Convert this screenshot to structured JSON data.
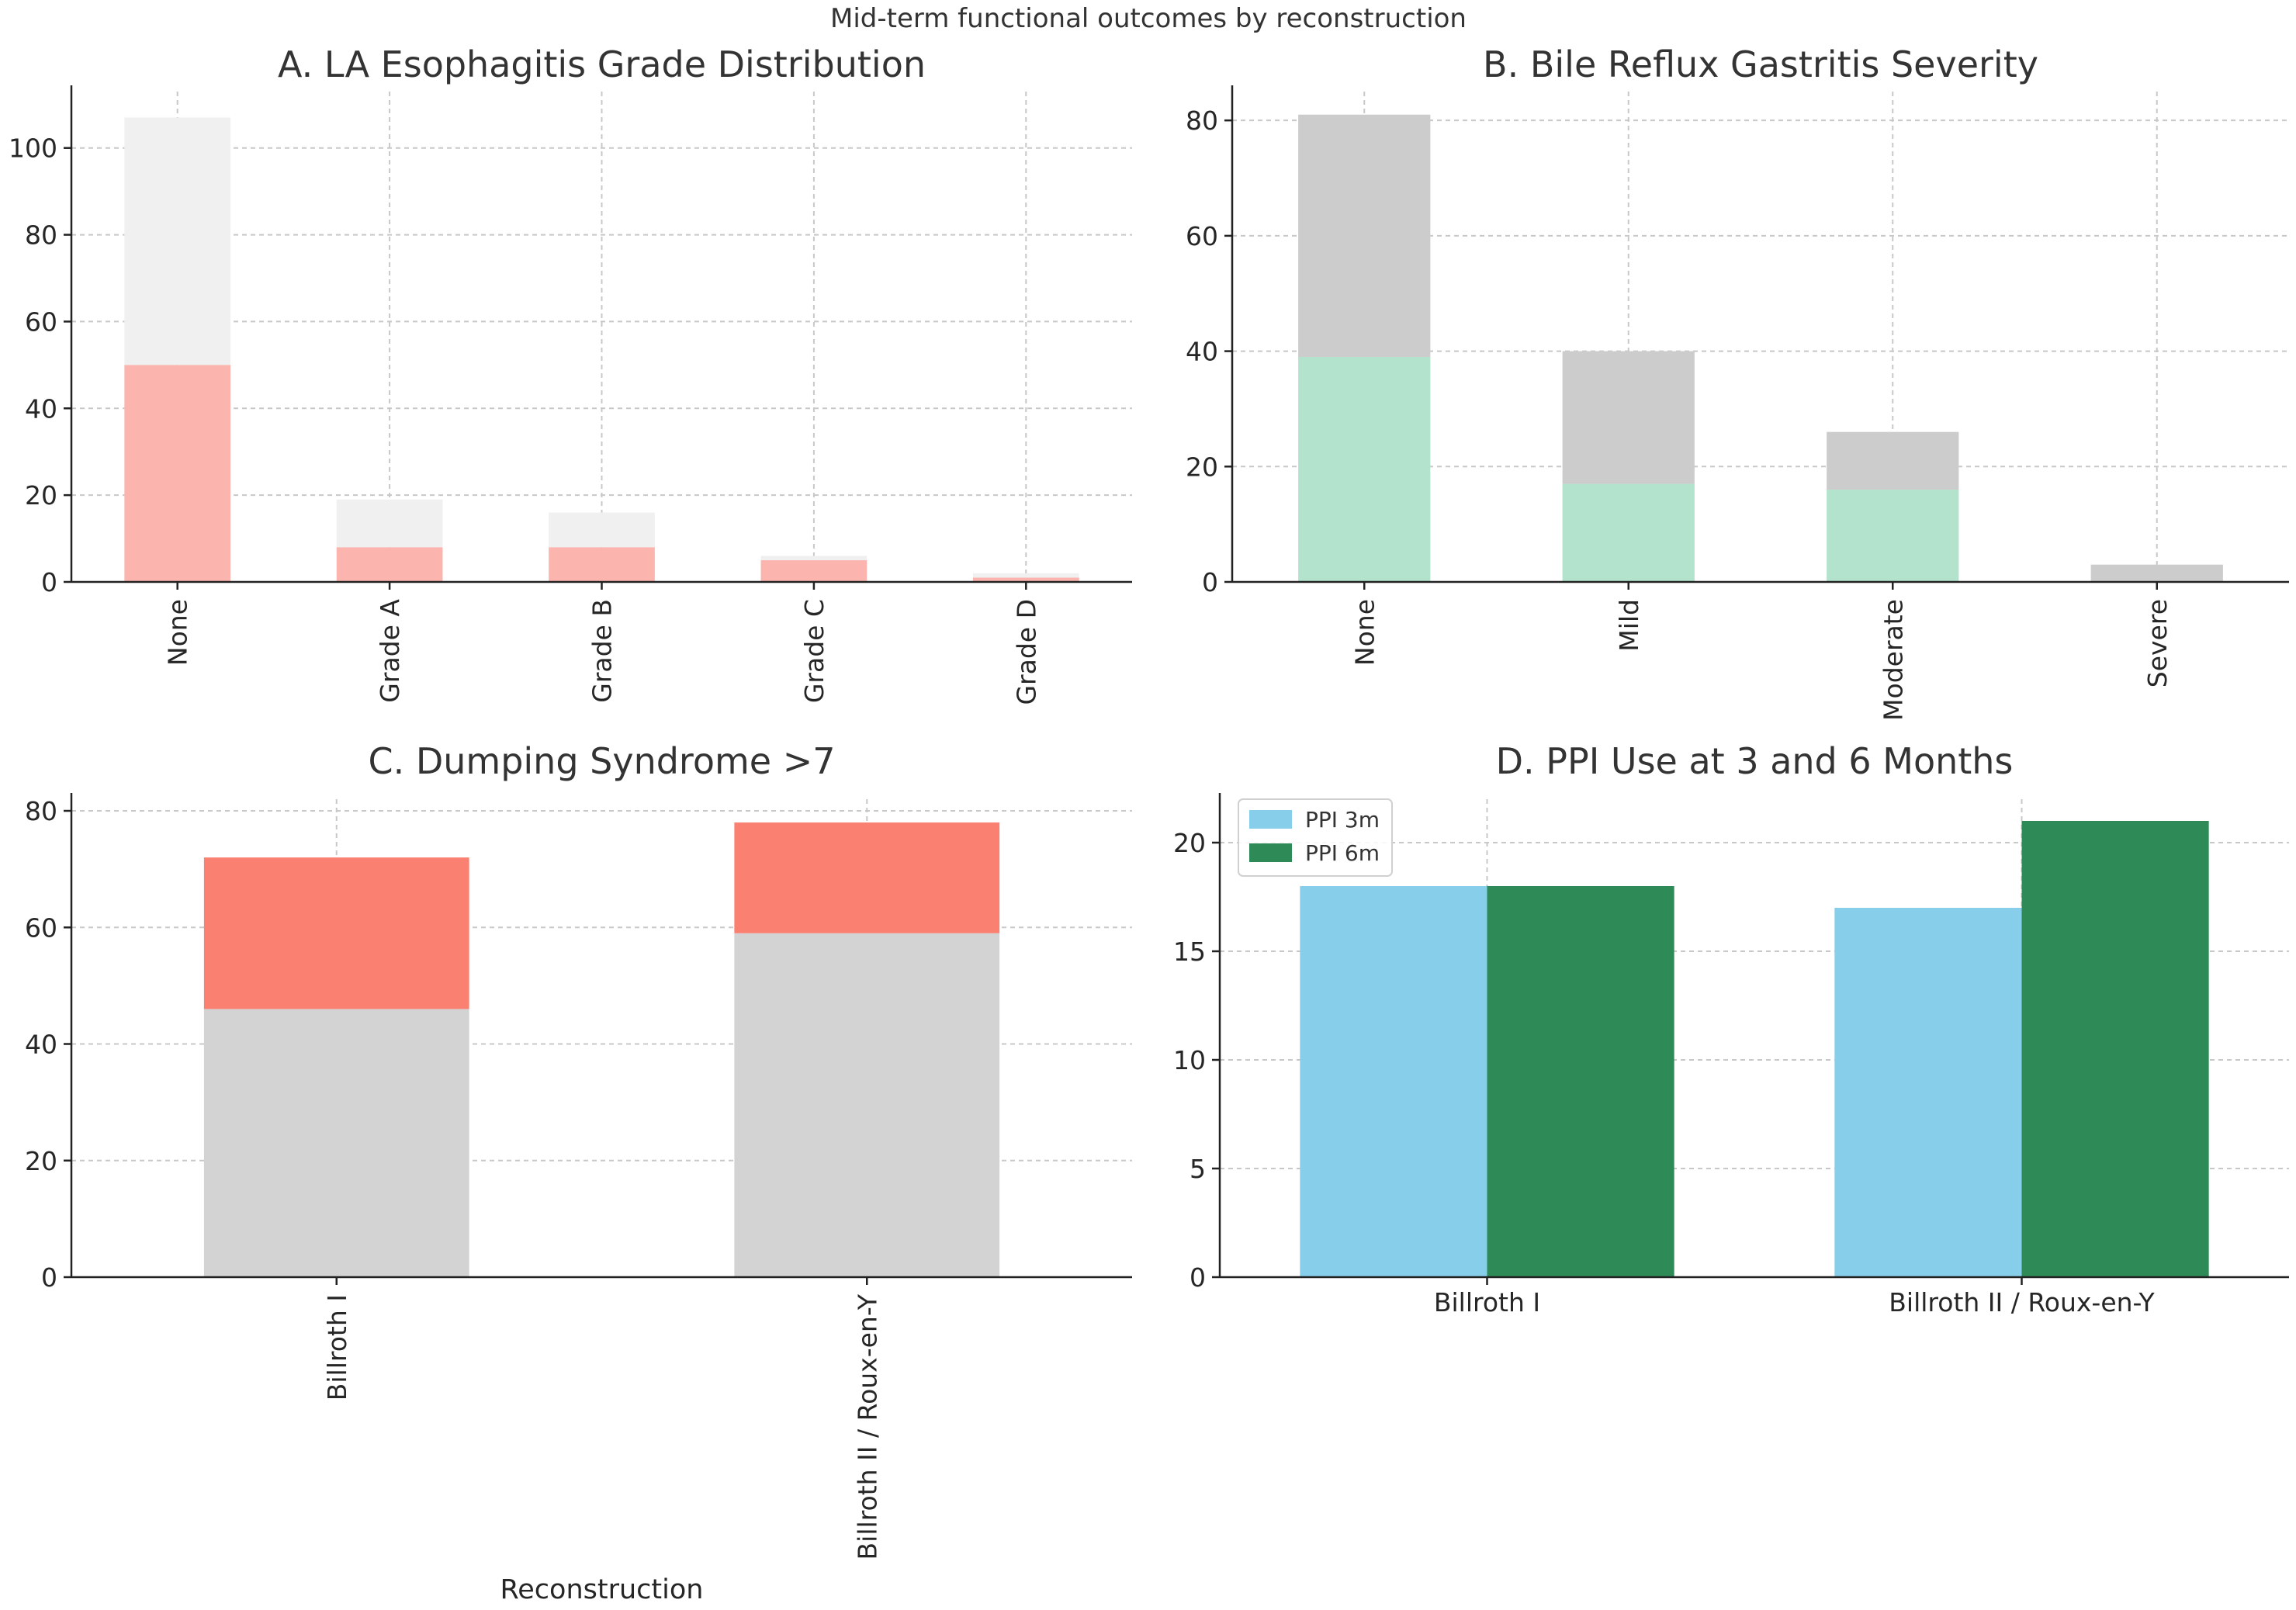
{
  "figure": {
    "suptitle": "Mid-term functional outcomes by reconstruction"
  },
  "chart_data": [
    {
      "type": "bar",
      "stacked": true,
      "title": "A. LA Esophagitis Grade Distribution",
      "xlabel": "",
      "ylabel": "",
      "categories": [
        "None",
        "Grade A",
        "Grade B",
        "Grade C",
        "Grade D"
      ],
      "category_label_rotation": "vertical",
      "ylim": [
        0,
        113
      ],
      "yticks": [
        0,
        20,
        40,
        60,
        80,
        100
      ],
      "grid": true,
      "series": [
        {
          "values": [
            50,
            8,
            8,
            5,
            1
          ],
          "color": "#fbb4ae"
        },
        {
          "values": [
            57,
            11,
            8,
            1,
            1
          ],
          "color": "#f0f0f0"
        }
      ]
    },
    {
      "type": "bar",
      "stacked": true,
      "title": "B. Bile Reflux Gastritis Severity",
      "xlabel": "",
      "ylabel": "",
      "categories": [
        "None",
        "Mild",
        "Moderate",
        "Severe"
      ],
      "category_label_rotation": "vertical",
      "ylim": [
        0,
        85
      ],
      "yticks": [
        0,
        20,
        40,
        60,
        80
      ],
      "grid": true,
      "series": [
        {
          "values": [
            39,
            17,
            16,
            0
          ],
          "color": "#b3e2cd"
        },
        {
          "values": [
            42,
            23,
            10,
            3
          ],
          "color": "#cccccc"
        }
      ]
    },
    {
      "type": "bar",
      "stacked": true,
      "title": "C. Dumping Syndrome >7",
      "xlabel": "Reconstruction",
      "ylabel": "",
      "categories": [
        "Billroth I",
        "Billroth II / Roux-en-Y"
      ],
      "category_label_rotation": "vertical",
      "ylim": [
        0,
        82
      ],
      "yticks": [
        0,
        20,
        40,
        60,
        80
      ],
      "grid": true,
      "series": [
        {
          "values": [
            46,
            59
          ],
          "color": "#d3d3d3"
        },
        {
          "values": [
            26,
            19
          ],
          "color": "#fa8072"
        }
      ]
    },
    {
      "type": "bar",
      "stacked": false,
      "title": "D. PPI Use at 3 and 6 Months",
      "xlabel": "",
      "ylabel": "",
      "categories": [
        "Billroth I",
        "Billroth II / Roux-en-Y"
      ],
      "category_label_rotation": "horizontal",
      "ylim": [
        0,
        22
      ],
      "yticks": [
        0,
        5,
        10,
        15,
        20
      ],
      "grid": true,
      "legend": "top-left",
      "series": [
        {
          "name": "PPI 3m",
          "values": [
            18,
            17
          ],
          "color": "#87ceeb"
        },
        {
          "name": "PPI 6m",
          "values": [
            18,
            21
          ],
          "color": "#2e8b57"
        }
      ]
    }
  ]
}
